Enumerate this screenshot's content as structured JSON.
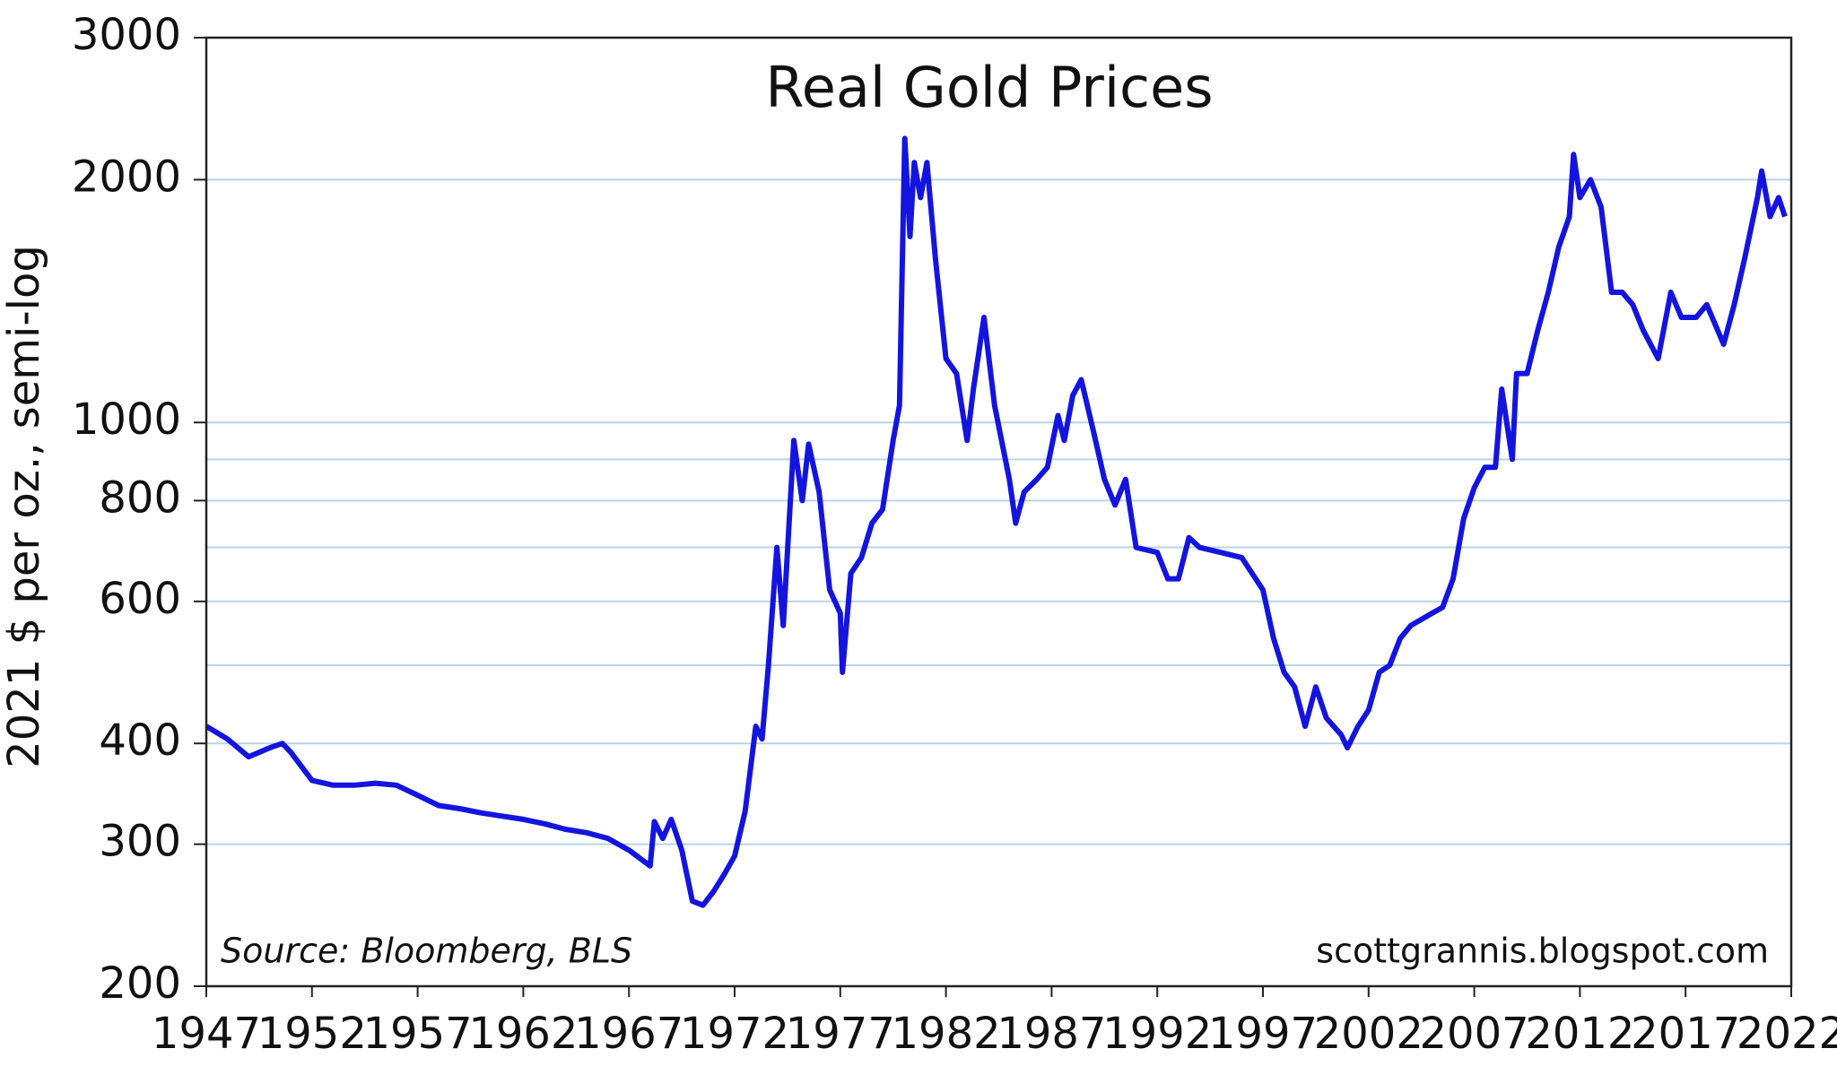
{
  "chart_data": {
    "type": "line",
    "title": "Real Gold Prices",
    "y_label": "2021 $ per oz., semi-log",
    "source": "Source:  Bloomberg, BLS",
    "credit": "scottgrannis.blogspot.com",
    "log_scale": true,
    "grid": true,
    "color": "#1414e0",
    "grid_color": "#b9d3ea",
    "xlim": [
      1947,
      2022
    ],
    "xticks": [
      1947,
      1952,
      1957,
      1962,
      1967,
      1972,
      1977,
      1982,
      1987,
      1992,
      1997,
      2002,
      2007,
      2012,
      2017,
      2022
    ],
    "ylim": [
      200,
      3000
    ],
    "yticks": [
      200,
      300,
      400,
      600,
      800,
      1000,
      2000,
      3000
    ],
    "minor_gridlines": [
      500,
      700,
      900
    ],
    "x": [
      1947,
      1948,
      1949,
      1950,
      1950.6,
      1951,
      1952,
      1953,
      1954,
      1955,
      1956,
      1957,
      1958,
      1959,
      1960,
      1961,
      1962,
      1963,
      1964,
      1965,
      1966,
      1967,
      1968,
      1968.2,
      1968.6,
      1969,
      1969.5,
      1970,
      1970.5,
      1971,
      1971.5,
      1972,
      1972.5,
      1973,
      1973.3,
      1973.6,
      1974,
      1974.3,
      1974.8,
      1975.2,
      1975.5,
      1976,
      1976.5,
      1977,
      1977.1,
      1977.5,
      1978,
      1978.5,
      1979,
      1979.5,
      1979.8,
      1980.05,
      1980.3,
      1980.5,
      1980.8,
      1981.1,
      1981.5,
      1982,
      1982.5,
      1983,
      1983.3,
      1983.8,
      1984.3,
      1985,
      1985.3,
      1985.7,
      1986.3,
      1986.8,
      1987.3,
      1987.6,
      1988,
      1988.4,
      1989,
      1989.5,
      1990,
      1990.5,
      1991,
      1992,
      1992.5,
      1993,
      1993.5,
      1994,
      1995,
      1996,
      1997,
      1997.5,
      1998,
      1998.5,
      1999,
      1999.5,
      2000,
      2000.7,
      2001,
      2001.5,
      2002,
      2002.5,
      2003,
      2003.5,
      2004,
      2005,
      2005.5,
      2006,
      2006.5,
      2007,
      2007.5,
      2008,
      2008.3,
      2008.8,
      2009,
      2009.5,
      2010,
      2010.5,
      2011,
      2011.5,
      2011.7,
      2012,
      2012.5,
      2013,
      2013.5,
      2014,
      2014.5,
      2015,
      2015.7,
      2016.3,
      2016.8,
      2017.5,
      2018,
      2018.8,
      2019.3,
      2019.8,
      2020.4,
      2020.6,
      2021,
      2021.4,
      2021.7
    ],
    "values": [
      420,
      405,
      385,
      395,
      400,
      390,
      360,
      355,
      355,
      357,
      355,
      345,
      335,
      332,
      328,
      325,
      322,
      318,
      313,
      310,
      305,
      295,
      282,
      320,
      305,
      322,
      295,
      255,
      252,
      262,
      275,
      290,
      330,
      420,
      405,
      500,
      700,
      560,
      950,
      800,
      940,
      820,
      620,
      580,
      490,
      650,
      680,
      750,
      780,
      950,
      1050,
      2250,
      1700,
      2100,
      1900,
      2100,
      1600,
      1200,
      1150,
      950,
      1100,
      1350,
      1050,
      850,
      750,
      820,
      850,
      880,
      1020,
      950,
      1080,
      1130,
      970,
      850,
      790,
      850,
      700,
      690,
      640,
      640,
      720,
      700,
      690,
      680,
      620,
      540,
      490,
      470,
      420,
      470,
      430,
      410,
      395,
      420,
      440,
      490,
      500,
      540,
      560,
      580,
      590,
      640,
      760,
      830,
      880,
      880,
      1100,
      900,
      1150,
      1150,
      1300,
      1450,
      1650,
      1800,
      2150,
      1900,
      2000,
      1850,
      1450,
      1450,
      1400,
      1300,
      1200,
      1450,
      1350,
      1350,
      1400,
      1250,
      1400,
      1600,
      1900,
      2050,
      1800,
      1900,
      1800
    ]
  }
}
